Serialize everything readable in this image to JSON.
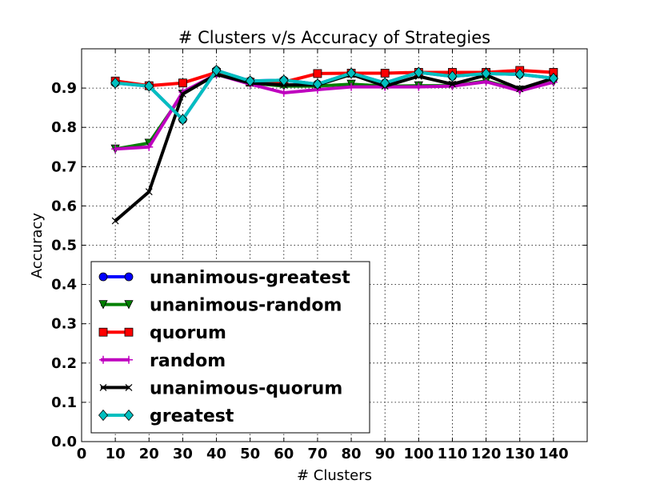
{
  "chart_data": {
    "type": "line",
    "title": "# Clusters v/s Accuracy of Strategies",
    "xlabel": "# Clusters",
    "ylabel": "Accuracy",
    "xlim": [
      0,
      150
    ],
    "ylim": [
      0.0,
      1.0
    ],
    "xticks": [
      "0",
      "10",
      "20",
      "30",
      "40",
      "50",
      "60",
      "70",
      "80",
      "90",
      "100",
      "110",
      "120",
      "130",
      "140"
    ],
    "yticks": [
      "0.0",
      "0.1",
      "0.2",
      "0.3",
      "0.4",
      "0.5",
      "0.6",
      "0.7",
      "0.8",
      "0.9"
    ],
    "grid": true,
    "legend_position": "lower-left",
    "x": [
      10,
      20,
      30,
      40,
      50,
      60,
      70,
      80,
      90,
      100,
      110,
      120,
      130,
      140
    ],
    "series": [
      {
        "name": "unanimous-greatest",
        "color": "#0000ff",
        "marker": "circle",
        "values": [
          0.913,
          0.905,
          0.82,
          0.945,
          0.918,
          0.92,
          0.91,
          0.938,
          0.913,
          0.94,
          0.93,
          0.937,
          0.935,
          0.925
        ]
      },
      {
        "name": "unanimous-random",
        "color": "#008000",
        "marker": "triangle-down",
        "values": [
          0.745,
          0.76,
          0.885,
          0.935,
          0.913,
          0.905,
          0.905,
          0.91,
          0.905,
          0.906,
          0.906,
          0.918,
          0.895,
          0.915
        ]
      },
      {
        "name": "quorum",
        "color": "#ff0000",
        "marker": "square",
        "values": [
          0.918,
          0.906,
          0.913,
          0.94,
          0.915,
          0.915,
          0.937,
          0.938,
          0.938,
          0.94,
          0.94,
          0.94,
          0.945,
          0.94
        ]
      },
      {
        "name": "random",
        "color": "#bf00bf",
        "marker": "plus",
        "values": [
          0.745,
          0.75,
          0.89,
          0.935,
          0.91,
          0.888,
          0.896,
          0.903,
          0.903,
          0.903,
          0.905,
          0.916,
          0.893,
          0.915
        ]
      },
      {
        "name": "unanimous-quorum",
        "color": "#000000",
        "marker": "x",
        "values": [
          0.562,
          0.636,
          0.885,
          0.935,
          0.913,
          0.908,
          0.908,
          0.935,
          0.905,
          0.93,
          0.91,
          0.933,
          0.898,
          0.925
        ]
      },
      {
        "name": "greatest",
        "color": "#00bfbf",
        "marker": "diamond",
        "values": [
          0.913,
          0.905,
          0.82,
          0.945,
          0.918,
          0.92,
          0.91,
          0.938,
          0.913,
          0.94,
          0.93,
          0.937,
          0.935,
          0.925
        ]
      }
    ]
  }
}
